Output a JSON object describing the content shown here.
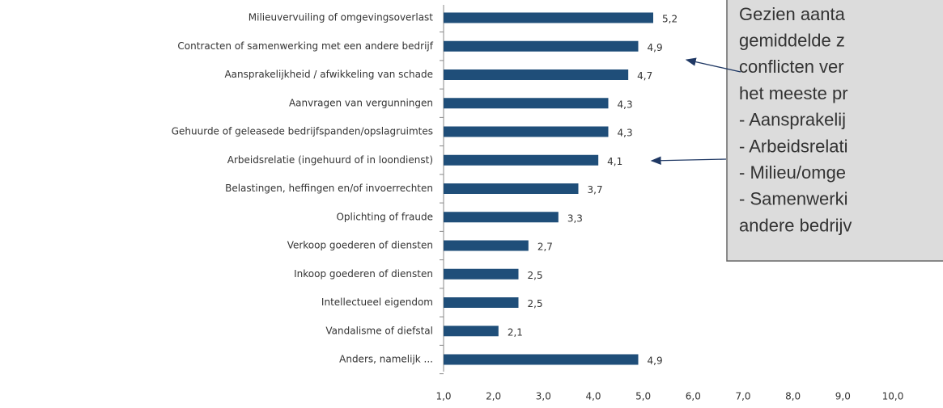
{
  "chart_data": {
    "type": "hbar",
    "categories": [
      "Milieuvervuiling of omgevingsoverlast",
      "Contracten of samenwerking met een andere bedrijf",
      "Aansprakelijkheid / afwikkeling van schade",
      "Aanvragen van vergunningen",
      "Gehuurde of geleasede bedrijfspanden/opslagruimtes",
      "Arbeidsrelatie (ingehuurd of in loondienst)",
      "Belastingen, heffingen en/of invoerrechten",
      "Oplichting of fraude",
      "Verkoop goederen of diensten",
      "Inkoop goederen of diensten",
      "Intellectueel eigendom",
      "Vandalisme of diefstal",
      "Anders, namelijk ..."
    ],
    "values": [
      5.2,
      4.9,
      4.7,
      4.3,
      4.3,
      4.1,
      3.7,
      3.3,
      2.7,
      2.5,
      2.5,
      2.1,
      4.9
    ],
    "value_labels": [
      "5,2",
      "4,9",
      "4,7",
      "4,3",
      "4,3",
      "4,1",
      "3,7",
      "3,3",
      "2,7",
      "2,5",
      "2,5",
      "2,1",
      "4,9"
    ],
    "color": "#1f4e79",
    "xlim": [
      1,
      10
    ],
    "xticks": [
      {
        "value": 1,
        "label": "1,0"
      },
      {
        "value": 2,
        "label": "2,0"
      },
      {
        "value": 3,
        "label": "3,0"
      },
      {
        "value": 4,
        "label": "4,0"
      },
      {
        "value": 5,
        "label": "5,0"
      },
      {
        "value": 6,
        "label": "6,0"
      },
      {
        "value": 7,
        "label": "7,0"
      },
      {
        "value": 8,
        "label": "8,0"
      },
      {
        "value": 9,
        "label": "9,0"
      },
      {
        "value": 10,
        "label": "10,0"
      }
    ],
    "annotation": [
      "Gezien aanta",
      "gemiddelde z",
      "conflicten ver",
      "het meeste pr",
      "- Aansprakelij",
      "- Arbeidsrelati",
      "- Milieu/omge",
      "- Samenwerki",
      "andere bedrijv"
    ]
  }
}
